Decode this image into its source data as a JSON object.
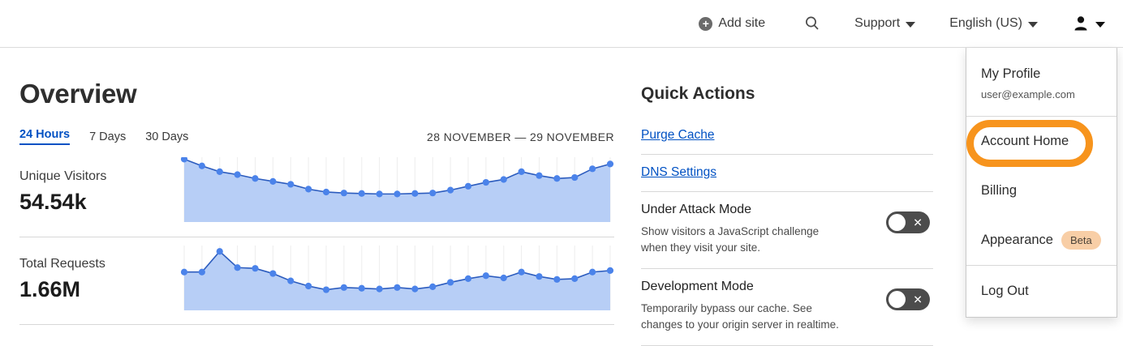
{
  "nav": {
    "add_site_label": "Add site",
    "support_label": "Support",
    "language_label": "English (US)"
  },
  "overview": {
    "title": "Overview",
    "tabs": [
      {
        "label": "24 Hours",
        "active": true
      },
      {
        "label": "7 Days",
        "active": false
      },
      {
        "label": "30 Days",
        "active": false
      }
    ],
    "date_range": "28 NOVEMBER — 29 NOVEMBER",
    "stats": [
      {
        "label": "Unique Visitors",
        "value": "54.54k"
      },
      {
        "label": "Total Requests",
        "value": "1.66M"
      }
    ]
  },
  "chart_data": [
    {
      "type": "area",
      "title": "Unique Visitors (24 Hours)",
      "total_label": "54.54k",
      "xlabel": "",
      "ylabel": "",
      "x_range": "28 November – 29 November, hourly points",
      "values": [
        100,
        93,
        87,
        84,
        80,
        77,
        74,
        69,
        66,
        65,
        64.5,
        64,
        64,
        64.5,
        65,
        68,
        72,
        76,
        79,
        87,
        83,
        80,
        81,
        90,
        95
      ],
      "ylim": [
        35,
        102
      ],
      "grid": "vertical",
      "legend": "none"
    },
    {
      "type": "area",
      "title": "Total Requests (24 Hours)",
      "total_label": "1.66M",
      "xlabel": "",
      "ylabel": "",
      "x_range": "28 November – 29 November, hourly points",
      "values": [
        72,
        72,
        100,
        78,
        77,
        70,
        60,
        53,
        48,
        51,
        50,
        49,
        51,
        49,
        52,
        58,
        63,
        67,
        64,
        72,
        66,
        62,
        63,
        72,
        74
      ],
      "ylim": [
        20,
        108
      ],
      "grid": "vertical",
      "legend": "none"
    }
  ],
  "quick_actions": {
    "title": "Quick Actions",
    "links": [
      {
        "label": "Purge Cache"
      },
      {
        "label": "DNS Settings"
      }
    ],
    "toggles": [
      {
        "label": "Under Attack Mode",
        "description": "Show visitors a JavaScript challenge when they visit your site.",
        "state": "off"
      },
      {
        "label": "Development Mode",
        "description": "Temporarily bypass our cache. See changes to your origin server in realtime.",
        "state": "off"
      }
    ]
  },
  "account_menu": {
    "profile_label": "My Profile",
    "profile_email": "user@example.com",
    "items": [
      {
        "label": "Account Home",
        "highlighted": true
      },
      {
        "label": "Billing"
      },
      {
        "label": "Appearance",
        "badge": "Beta"
      },
      {
        "label": "Log Out"
      }
    ]
  },
  "colors": {
    "link_blue": "#0051c3",
    "chart_line": "#2c5cbe",
    "chart_dot": "#4b83ea",
    "chart_fill": "#b7cef6",
    "chart_grid": "#ededed",
    "toggle_off_bg": "#4c4c4c",
    "highlight_orange": "#f7941d",
    "beta_badge_bg": "#f8cea6"
  }
}
